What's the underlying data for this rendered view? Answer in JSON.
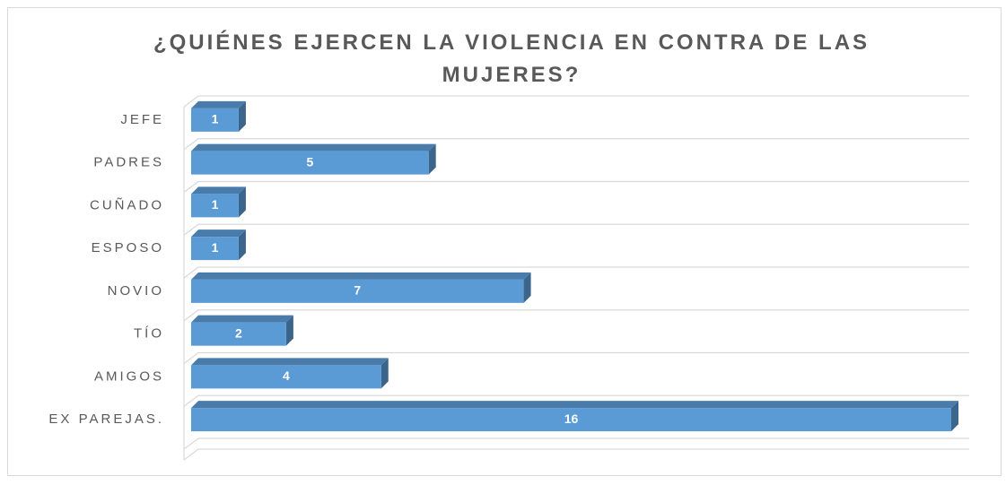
{
  "chart_data": {
    "type": "bar3d-horizontal",
    "title": "¿QUIÉNES EJERCEN LA VIOLENCIA EN CONTRA DE LAS MUJERES?",
    "categories": [
      "JEFE",
      "PADRES",
      "CUÑADO",
      "ESPOSO",
      "NOVIO",
      "TÍO",
      "AMIGOS",
      "EX PAREJAS."
    ],
    "values": [
      1,
      5,
      1,
      1,
      7,
      2,
      4,
      16
    ],
    "color": "#5b9bd5",
    "xlim": [
      0,
      16
    ],
    "grid": true
  }
}
